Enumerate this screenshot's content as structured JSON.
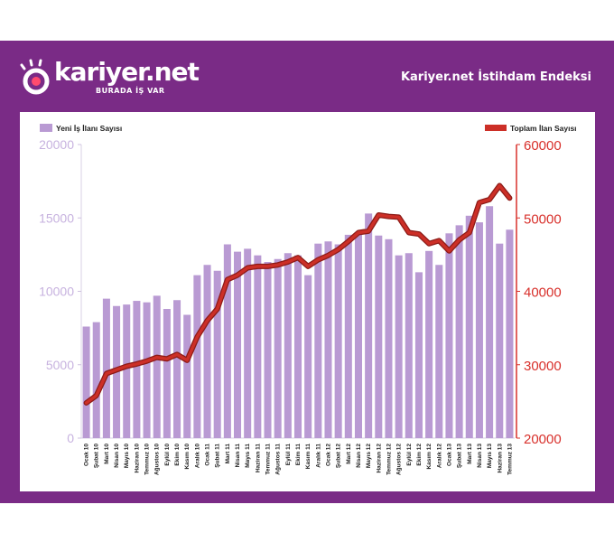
{
  "header": {
    "brand": "kariyer.net",
    "tagline": "BURADA İŞ VAR",
    "title": "Kariyer.net İstihdam Endeksi"
  },
  "colors": {
    "frame": "#7a2b86",
    "bar": "#b99ad3",
    "line": "#cc2f27",
    "line_outline": "#8c1b17",
    "left_axis_text": "#c7b2df",
    "right_axis_text": "#d8302b"
  },
  "chart_data": {
    "type": "bar",
    "categories": [
      "Ocak 10",
      "Şubat 10",
      "Mart 10",
      "Nisan 10",
      "Mayıs 10",
      "Haziran 10",
      "Temmuz 10",
      "Ağustos 10",
      "Eylül 10",
      "Ekim 10",
      "Kasım 10",
      "Aralık 10",
      "Ocak 11",
      "Şubat 11",
      "Mart 11",
      "Nisan 11",
      "Mayıs 11",
      "Haziran 11",
      "Temmuz 11",
      "Ağustos 11",
      "Eylül 11",
      "Ekim 11",
      "Kasım 11",
      "Aralık 11",
      "Ocak 12",
      "Şubat 12",
      "Mart 12",
      "Nisan 12",
      "Mayıs 12",
      "Haziran 12",
      "Temmuz 12",
      "Ağustos 12",
      "Eylül 12",
      "Ekim 12",
      "Kasım 12",
      "Aralık 12",
      "Ocak 13",
      "Şubat 13",
      "Mart 13",
      "Nisan 13",
      "Mayıs 13",
      "Haziran 13",
      "Temmuz 13"
    ],
    "series": [
      {
        "name": "Yeni İş İlanı Sayısı",
        "type": "bar",
        "axis": "left",
        "values": [
          7600,
          7900,
          9500,
          9000,
          9100,
          9350,
          9250,
          9700,
          8800,
          9400,
          8400,
          11100,
          11800,
          11400,
          13200,
          12700,
          12900,
          12450,
          12000,
          12200,
          12600,
          12450,
          11100,
          13250,
          13400,
          13200,
          13850,
          14000,
          15300,
          13800,
          13550,
          12450,
          12600,
          11300,
          12750,
          11800,
          13950,
          14500,
          15150,
          14700,
          15800,
          13250,
          14200
        ]
      },
      {
        "name": "Toplam İlan Sayısı",
        "type": "line",
        "axis": "right",
        "values": [
          24800,
          25800,
          28800,
          29300,
          29800,
          30100,
          30500,
          31000,
          30800,
          31400,
          30600,
          33800,
          36000,
          37600,
          41600,
          42200,
          43200,
          43400,
          43400,
          43600,
          44000,
          44600,
          43400,
          44300,
          44900,
          45700,
          46800,
          48000,
          48200,
          50400,
          50200,
          50100,
          48000,
          47800,
          46500,
          46900,
          45500,
          47000,
          48000,
          52100,
          52500,
          54400,
          52700
        ]
      }
    ],
    "y_left": {
      "min": 0,
      "max": 20000,
      "ticks": [
        "0",
        "5000",
        "10000",
        "15000",
        "20000"
      ]
    },
    "y_right": {
      "min": 20000,
      "max": 60000,
      "ticks": [
        "20000",
        "30000",
        "40000",
        "50000",
        "60000"
      ]
    },
    "legend": {
      "left": "Yeni İş İlanı Sayısı",
      "right": "Toplam İlan Sayısı"
    },
    "grid": false
  }
}
